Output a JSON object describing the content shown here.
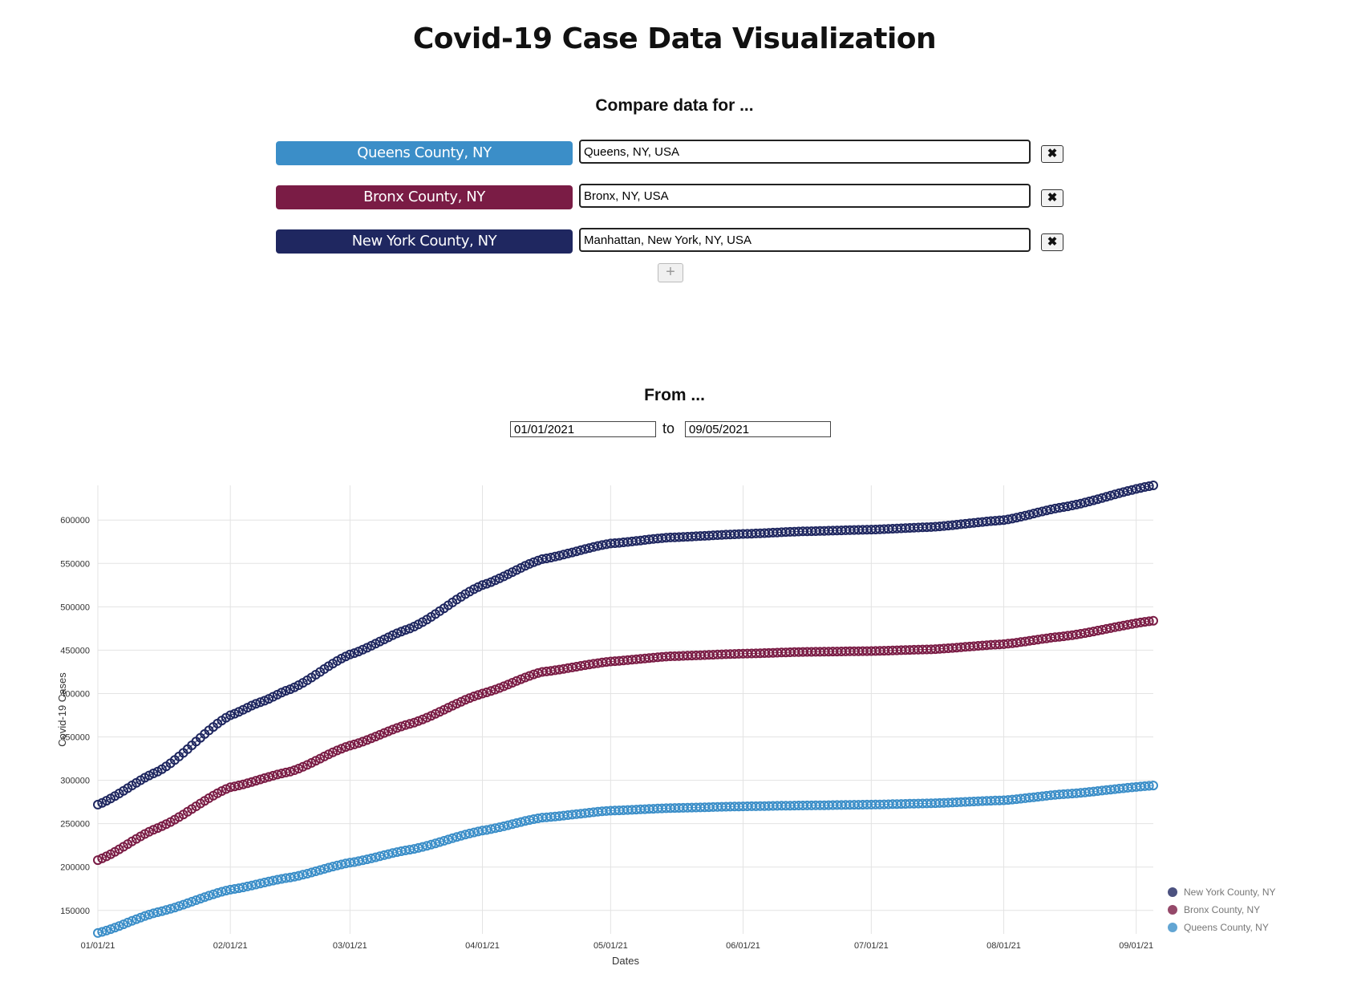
{
  "page": {
    "title": "Covid-19 Case Data Visualization",
    "compare_heading": "Compare data for ...",
    "from_heading": "From ...",
    "to_label": "to",
    "add_button": "+",
    "remove_button": "✖"
  },
  "comparisons": [
    {
      "county": "Queens County, NY",
      "location": "Queens, NY, USA",
      "color": "#3b8ec8"
    },
    {
      "county": "Bronx County, NY",
      "location": "Bronx, NY, USA",
      "color": "#7a1c45"
    },
    {
      "county": "New York County, NY",
      "location": "Manhattan, New York, NY, USA",
      "color": "#1f2760"
    }
  ],
  "date_range": {
    "start": "01/01/2021",
    "end": "09/05/2021"
  },
  "chart_data": {
    "type": "line",
    "xlabel": "Dates",
    "ylabel": "Covid-19 Cases",
    "x_ticks": [
      "01/01/21",
      "02/01/21",
      "03/01/21",
      "04/01/21",
      "05/01/21",
      "06/01/21",
      "07/01/21",
      "08/01/21",
      "09/01/21"
    ],
    "y_ticks": [
      150000,
      200000,
      250000,
      300000,
      350000,
      400000,
      450000,
      500000,
      550000,
      600000
    ],
    "ylim": [
      123000,
      640000
    ],
    "grid": true,
    "legend_position": "bottom-right",
    "series": [
      {
        "name": "New York County, NY",
        "color": "#1f2760",
        "points": [
          [
            "2021-01-01",
            272000
          ],
          [
            "2021-01-15",
            310000
          ],
          [
            "2021-02-01",
            375000
          ],
          [
            "2021-02-08",
            390000
          ],
          [
            "2021-02-15",
            405000
          ],
          [
            "2021-03-01",
            445000
          ],
          [
            "2021-03-15",
            475000
          ],
          [
            "2021-04-01",
            525000
          ],
          [
            "2021-04-15",
            555000
          ],
          [
            "2021-05-01",
            573000
          ],
          [
            "2021-05-15",
            580000
          ],
          [
            "2021-06-01",
            584000
          ],
          [
            "2021-06-15",
            587000
          ],
          [
            "2021-07-01",
            589000
          ],
          [
            "2021-07-15",
            592000
          ],
          [
            "2021-08-01",
            600000
          ],
          [
            "2021-08-15",
            615000
          ],
          [
            "2021-09-05",
            640000
          ]
        ]
      },
      {
        "name": "Bronx County, NY",
        "color": "#7a1c45",
        "points": [
          [
            "2021-01-01",
            208000
          ],
          [
            "2021-01-15",
            245000
          ],
          [
            "2021-02-01",
            292000
          ],
          [
            "2021-02-15",
            310000
          ],
          [
            "2021-03-01",
            340000
          ],
          [
            "2021-03-15",
            365000
          ],
          [
            "2021-04-01",
            400000
          ],
          [
            "2021-04-15",
            425000
          ],
          [
            "2021-05-01",
            437000
          ],
          [
            "2021-05-15",
            443000
          ],
          [
            "2021-06-01",
            446000
          ],
          [
            "2021-06-15",
            448000
          ],
          [
            "2021-07-01",
            449000
          ],
          [
            "2021-07-15",
            451000
          ],
          [
            "2021-08-01",
            457000
          ],
          [
            "2021-08-15",
            466000
          ],
          [
            "2021-09-05",
            484000
          ]
        ]
      },
      {
        "name": "Queens County, NY",
        "color": "#3b8ec8",
        "points": [
          [
            "2021-01-01",
            124000
          ],
          [
            "2021-01-15",
            148000
          ],
          [
            "2021-02-01",
            174000
          ],
          [
            "2021-02-15",
            188000
          ],
          [
            "2021-03-01",
            205000
          ],
          [
            "2021-03-15",
            220000
          ],
          [
            "2021-04-01",
            242000
          ],
          [
            "2021-04-15",
            257000
          ],
          [
            "2021-05-01",
            265000
          ],
          [
            "2021-05-15",
            268000
          ],
          [
            "2021-06-01",
            270000
          ],
          [
            "2021-06-15",
            271000
          ],
          [
            "2021-07-01",
            272000
          ],
          [
            "2021-07-15",
            273500
          ],
          [
            "2021-08-01",
            277000
          ],
          [
            "2021-08-15",
            284000
          ],
          [
            "2021-09-05",
            294000
          ]
        ]
      }
    ]
  }
}
